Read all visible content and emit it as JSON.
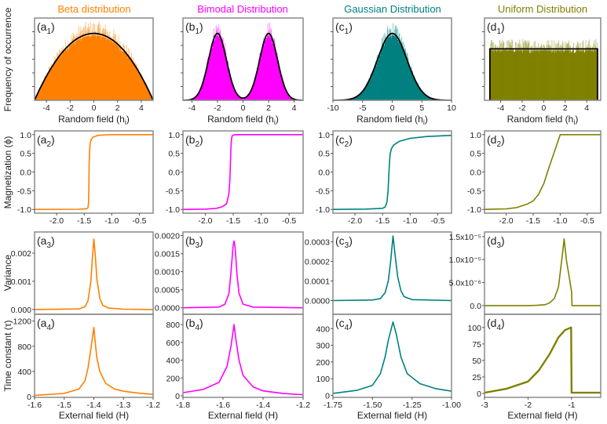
{
  "figure": {
    "titles": [
      {
        "text": "Beta distribution",
        "color": "#ff8000"
      },
      {
        "text": "Bimodal Distribution",
        "color": "#ff00ff"
      },
      {
        "text": "Gaussian Distribution",
        "color": "#008080"
      },
      {
        "text": "Uniform Distribution",
        "color": "#808000"
      }
    ],
    "ylabels": [
      "Frequency of occurrence",
      "Magnetization (ϕ)",
      "Variance",
      "Time constant (τ)"
    ],
    "xlabel_top": {
      "pre": "Random field (h",
      "sub": "i",
      "post": ")"
    },
    "xlabel_bottom": "External field (H)"
  },
  "chart_data": [
    {
      "panel": "a1",
      "letter": "a",
      "sub": "1",
      "type": "bar",
      "color": "#ff8000",
      "xlim": [
        -5,
        5
      ],
      "ylim": [
        0,
        1.23
      ],
      "xticks": [
        -4,
        -2,
        0,
        2,
        4
      ],
      "xtick_labels": [
        "-4",
        "-2",
        "0",
        "2",
        "4"
      ],
      "fit": {
        "kind": "beta",
        "range": [
          -5,
          5
        ]
      }
    },
    {
      "panel": "b1",
      "letter": "b",
      "sub": "1",
      "type": "bar",
      "color": "#ff00ff",
      "xlim": [
        -4.7,
        4.7
      ],
      "ylim": [
        0,
        1.23
      ],
      "xticks": [
        -4,
        -2,
        0,
        2,
        4
      ],
      "xtick_labels": [
        "-4",
        "-2",
        "0",
        "2",
        "4"
      ],
      "fit": {
        "kind": "bimodal",
        "centers": [
          -2,
          2
        ],
        "sigma": 0.7
      }
    },
    {
      "panel": "c1",
      "letter": "c",
      "sub": "1",
      "type": "bar",
      "color": "#008080",
      "xlim": [
        -10,
        10
      ],
      "ylim": [
        0,
        1.23
      ],
      "xticks": [
        -10,
        -5,
        0,
        5,
        10
      ],
      "xtick_labels": [
        "-10",
        "-5",
        "0",
        "5",
        "10"
      ],
      "fit": {
        "kind": "gaussian",
        "center": 0,
        "sigma": 2.5
      }
    },
    {
      "panel": "d1",
      "letter": "d",
      "sub": "1",
      "type": "bar",
      "color": "#808000",
      "xlim": [
        -5.5,
        5.3
      ],
      "ylim": [
        0,
        1.6
      ],
      "xticks": [
        -4,
        -2,
        0,
        2,
        4
      ],
      "xtick_labels": [
        "-4",
        "-2",
        "0",
        "2",
        "4"
      ],
      "fit": {
        "kind": "uniform",
        "range": [
          -5,
          5
        ]
      }
    },
    {
      "panel": "a2",
      "letter": "a",
      "sub": "2",
      "type": "line",
      "color": "#ff8000",
      "xlim": [
        -2.4,
        -0.25
      ],
      "ylim": [
        -1.1,
        1.1
      ],
      "xticks": [
        -2,
        -1.5,
        -1,
        -0.5
      ],
      "xtick_labels": [
        "-2.0",
        "-1.5",
        "-1.0",
        "-0.5"
      ],
      "yticks": [
        -1,
        -0.5,
        0,
        0.5,
        1
      ],
      "ytick_labels": [
        "-1.0",
        "-0.5",
        "0.0",
        "0.5",
        "1.0"
      ],
      "x": [
        -2.4,
        -1.6,
        -1.45,
        -1.43,
        -1.42,
        -1.415,
        -1.41,
        -1.4,
        -1.39,
        -1.37,
        -1.33,
        -1.25,
        -1.1,
        -0.9,
        -0.25
      ],
      "y": [
        -1,
        -0.995,
        -0.98,
        -0.95,
        -0.8,
        -0.4,
        0.2,
        0.6,
        0.78,
        0.88,
        0.94,
        0.98,
        0.995,
        1,
        1
      ]
    },
    {
      "panel": "b2",
      "letter": "b",
      "sub": "2",
      "type": "line",
      "color": "#ff00ff",
      "xlim": [
        -2.4,
        -0.25
      ],
      "ylim": [
        -1.1,
        1.1
      ],
      "xticks": [
        -2,
        -1.5,
        -1,
        -0.5
      ],
      "xtick_labels": [
        "-2.0",
        "-1.5",
        "-1.0",
        "-0.5"
      ],
      "yticks": [
        -1,
        -0.5,
        0,
        0.5,
        1
      ],
      "ytick_labels": [
        "-1.0",
        "-0.5",
        "0.0",
        "0.5",
        "1.0"
      ],
      "x": [
        -2.4,
        -2.0,
        -1.8,
        -1.7,
        -1.62,
        -1.58,
        -1.56,
        -1.55,
        -1.54,
        -1.53,
        -1.52,
        -1.5,
        -1.45,
        -1.3,
        -0.25
      ],
      "y": [
        -1,
        -0.99,
        -0.97,
        -0.93,
        -0.85,
        -0.6,
        -0.2,
        0.3,
        0.7,
        0.9,
        0.96,
        0.99,
        1,
        1,
        1
      ]
    },
    {
      "panel": "c2",
      "letter": "c",
      "sub": "2",
      "type": "line",
      "color": "#008080",
      "xlim": [
        -2.4,
        -0.25
      ],
      "ylim": [
        -1.1,
        1.1
      ],
      "xticks": [
        -2,
        -1.5,
        -1,
        -0.5
      ],
      "xtick_labels": [
        "-2.0",
        "-1.5",
        "-1.0",
        "-0.5"
      ],
      "yticks": [
        -1,
        -0.5,
        0,
        0.5,
        1
      ],
      "ytick_labels": [
        "-1.0",
        "-0.5",
        "0.0",
        "0.5",
        "1.0"
      ],
      "x": [
        -2.4,
        -1.8,
        -1.5,
        -1.45,
        -1.42,
        -1.4,
        -1.39,
        -1.38,
        -1.37,
        -1.36,
        -1.34,
        -1.3,
        -1.2,
        -1.0,
        -0.7,
        -0.25
      ],
      "y": [
        -1,
        -0.99,
        -0.97,
        -0.93,
        -0.8,
        -0.5,
        -0.2,
        0.1,
        0.35,
        0.5,
        0.62,
        0.72,
        0.82,
        0.9,
        0.95,
        0.98
      ]
    },
    {
      "panel": "d2",
      "letter": "d",
      "sub": "2",
      "type": "line",
      "color": "#808000",
      "xlim": [
        -2.4,
        -0.25
      ],
      "ylim": [
        -1.1,
        1.1
      ],
      "xticks": [
        -2,
        -1.5,
        -1,
        -0.5
      ],
      "xtick_labels": [
        "-2.0",
        "-1.5",
        "-1.0",
        "-0.5"
      ],
      "yticks": [
        -1,
        -0.5,
        0,
        0.5,
        1
      ],
      "ytick_labels": [
        "-1.0",
        "-0.5",
        "0.0",
        "0.5",
        "1.0"
      ],
      "x": [
        -2.4,
        -2.0,
        -1.8,
        -1.6,
        -1.5,
        -1.4,
        -1.3,
        -1.2,
        -1.1,
        -1.0,
        -0.25
      ],
      "y": [
        -1,
        -0.985,
        -0.95,
        -0.85,
        -0.77,
        -0.6,
        -0.3,
        0.15,
        0.57,
        1,
        1
      ]
    },
    {
      "panel": "a3",
      "letter": "a",
      "sub": "3",
      "type": "line",
      "color": "#ff8000",
      "xlim": [
        -1.6,
        -1.2
      ],
      "ylim": [
        -0.00017,
        0.00275
      ],
      "yticks": [
        0,
        0.001,
        0.002
      ],
      "ytick_labels": [
        "0.000",
        "0.001",
        "0.002"
      ],
      "x": [
        -1.6,
        -1.45,
        -1.43,
        -1.42,
        -1.41,
        -1.405,
        -1.4,
        -1.395,
        -1.39,
        -1.38,
        -1.37,
        -1.35,
        -1.3,
        -1.2
      ],
      "y": [
        0,
        2e-05,
        0.0001,
        0.0003,
        0.001,
        0.0018,
        0.0025,
        0.0019,
        0.0011,
        0.0004,
        0.00015,
        5e-05,
        1e-05,
        0
      ]
    },
    {
      "panel": "b3",
      "letter": "b",
      "sub": "3",
      "type": "line",
      "color": "#ff00ff",
      "xlim": [
        -1.8,
        -1.2
      ],
      "ylim": [
        -0.00018,
        0.0021
      ],
      "yticks": [
        0,
        0.0005,
        0.001,
        0.0015,
        0.002
      ],
      "ytick_labels": [
        "0.0000",
        "0.0005",
        "0.0010",
        "0.0015",
        "0.0020"
      ],
      "x": [
        -1.8,
        -1.62,
        -1.59,
        -1.57,
        -1.56,
        -1.55,
        -1.545,
        -1.54,
        -1.53,
        -1.52,
        -1.5,
        -1.45,
        -1.2
      ],
      "y": [
        0,
        2e-05,
        0.0001,
        0.0004,
        0.001,
        0.0017,
        0.00185,
        0.0017,
        0.0009,
        0.0004,
        0.0001,
        2e-05,
        0
      ]
    },
    {
      "panel": "c3",
      "letter": "c",
      "sub": "3",
      "type": "line",
      "color": "#008080",
      "xlim": [
        -1.75,
        -1.0
      ],
      "ylim": [
        -7e-05,
        0.00035
      ],
      "yticks": [
        0,
        0.0001,
        0.0002,
        0.0003
      ],
      "ytick_labels": [
        "0.0000",
        "0.0001",
        "0.0002",
        "0.0003"
      ],
      "x": [
        -1.75,
        -1.5,
        -1.45,
        -1.42,
        -1.4,
        -1.385,
        -1.37,
        -1.355,
        -1.34,
        -1.32,
        -1.3,
        -1.25,
        -1.0
      ],
      "y": [
        0,
        3e-06,
        1e-05,
        4e-05,
        0.0001,
        0.0002,
        0.00033,
        0.00022,
        0.00012,
        5e-05,
        2e-05,
        5e-06,
        0
      ]
    },
    {
      "panel": "d3",
      "letter": "d",
      "sub": "3",
      "type": "line",
      "color": "#808000",
      "xlim": [
        -3,
        -0.33
      ],
      "ylim": [
        -1.9e-06,
        1.6e-05
      ],
      "yticks": [
        0,
        5e-06,
        1e-05,
        1.5e-05
      ],
      "ytick_labels": [
        "0.0",
        "5.0x10⁻⁶",
        "1.0x10⁻⁵",
        "1.5x10⁻⁵"
      ],
      "x": [
        -3,
        -2,
        -1.8,
        -1.6,
        -1.5,
        -1.4,
        -1.3,
        -1.2,
        -1.17,
        -1.12,
        -1.05,
        -1.0,
        -0.99,
        -0.33
      ],
      "y": [
        0,
        0,
        5e-08,
        2e-07,
        6e-07,
        1.5e-06,
        4e-06,
        1.2e-05,
        1.45e-05,
        1e-05,
        6e-06,
        3e-06,
        0,
        0
      ]
    },
    {
      "panel": "a4",
      "letter": "a",
      "sub": "4",
      "type": "line",
      "color": "#ff8000",
      "xlim": [
        -1.6,
        -1.2
      ],
      "ylim": [
        -12,
        1308
      ],
      "xticks": [
        -1.6,
        -1.5,
        -1.4,
        -1.3,
        -1.2
      ],
      "xtick_labels": [
        "-1.6",
        "-1.5",
        "-1.4",
        "-1.3",
        "-1.2"
      ],
      "yticks": [
        0,
        400,
        800,
        1200
      ],
      "ytick_labels": [
        "0",
        "400",
        "800",
        "1200"
      ],
      "x": [
        -1.6,
        -1.5,
        -1.45,
        -1.43,
        -1.42,
        -1.41,
        -1.4,
        -1.395,
        -1.39,
        -1.38,
        -1.36,
        -1.33,
        -1.3,
        -1.25,
        -1.2
      ],
      "y": [
        20,
        50,
        120,
        250,
        450,
        750,
        1100,
        850,
        620,
        400,
        210,
        120,
        85,
        55,
        35
      ]
    },
    {
      "panel": "b4",
      "letter": "b",
      "sub": "4",
      "type": "line",
      "color": "#ff00ff",
      "xlim": [
        -1.8,
        -1.2
      ],
      "ylim": [
        -18,
        916
      ],
      "xticks": [
        -1.8,
        -1.6,
        -1.4,
        -1.2
      ],
      "xtick_labels": [
        "-1.8",
        "-1.6",
        "-1.4",
        "-1.2"
      ],
      "yticks": [
        0,
        200,
        400,
        600,
        800
      ],
      "ytick_labels": [
        "0",
        "200",
        "400",
        "600",
        "800"
      ],
      "x": [
        -1.8,
        -1.7,
        -1.62,
        -1.58,
        -1.56,
        -1.545,
        -1.535,
        -1.52,
        -1.5,
        -1.45,
        -1.4,
        -1.3,
        -1.2
      ],
      "y": [
        35,
        70,
        150,
        330,
        560,
        800,
        620,
        400,
        230,
        100,
        55,
        25,
        12
      ]
    },
    {
      "panel": "c4",
      "letter": "c",
      "sub": "4",
      "type": "line",
      "color": "#008080",
      "xlim": [
        -1.75,
        -1.0
      ],
      "ylim": [
        -12,
        486
      ],
      "xticks": [
        -1.75,
        -1.5,
        -1.25,
        -1.0
      ],
      "xtick_labels": [
        "-1.75",
        "-1.50",
        "-1.25",
        "-1.00"
      ],
      "yticks": [
        0,
        100,
        200,
        300,
        400
      ],
      "ytick_labels": [
        "0",
        "100",
        "200",
        "300",
        "400"
      ],
      "x": [
        -1.75,
        -1.6,
        -1.5,
        -1.45,
        -1.42,
        -1.4,
        -1.37,
        -1.35,
        -1.32,
        -1.28,
        -1.2,
        -1.1,
        -1.0
      ],
      "y": [
        12,
        30,
        60,
        130,
        230,
        330,
        440,
        370,
        230,
        130,
        70,
        40,
        25
      ]
    },
    {
      "panel": "d4",
      "letter": "d",
      "sub": "4",
      "type": "line",
      "color": "#808000",
      "xlim": [
        -3,
        -0.33
      ],
      "ylim": [
        -6,
        120
      ],
      "xticks": [
        -3,
        -2,
        -1
      ],
      "xtick_labels": [
        "-3",
        "-2",
        "-1"
      ],
      "yticks": [
        0,
        25,
        50,
        75,
        100
      ],
      "ytick_labels": [
        "0",
        "25",
        "50",
        "75",
        "100"
      ],
      "x": [
        -3,
        -2.5,
        -2,
        -1.75,
        -1.5,
        -1.3,
        -1.15,
        -1.01,
        -1.0,
        -0.33
      ],
      "y": [
        1,
        7,
        18,
        35,
        60,
        85,
        96,
        100,
        1,
        1
      ]
    }
  ]
}
